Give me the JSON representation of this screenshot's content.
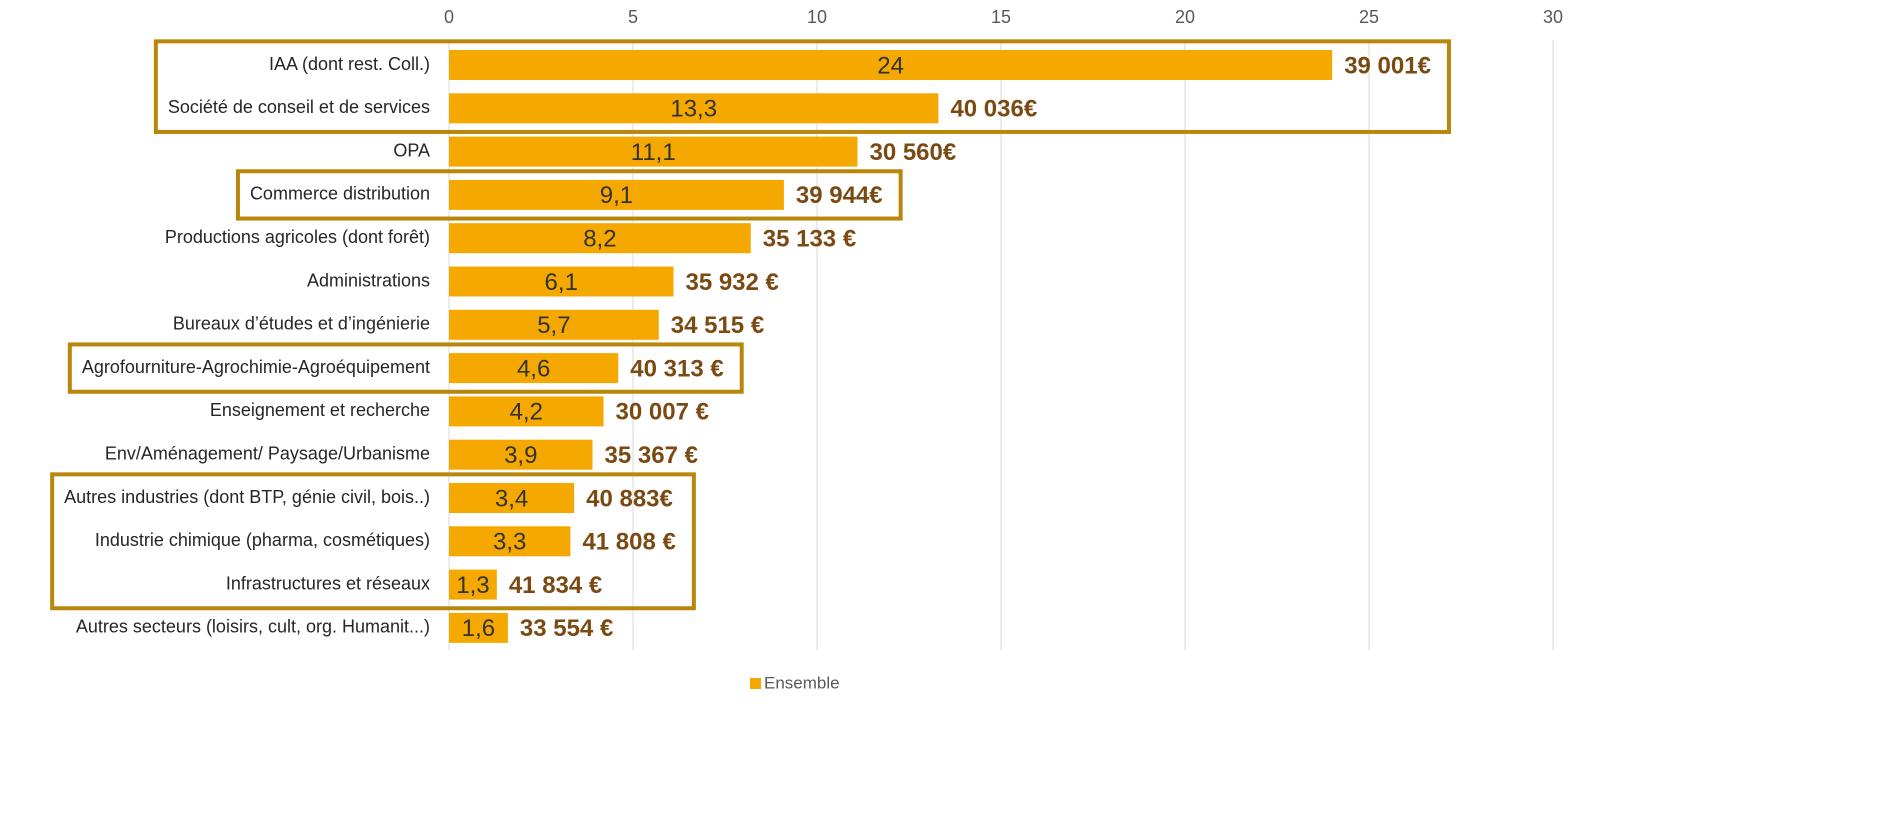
{
  "chart_data": {
    "type": "bar",
    "orientation": "horizontal",
    "categories": [
      "IAA (dont rest. Coll.)",
      "Société de conseil et de services",
      "OPA",
      "Commerce distribution",
      "Productions agricoles (dont forêt)",
      "Administrations",
      "Bureaux d’études et d’ingénierie",
      "Agrofourniture-Agrochimie-Agroéquipement",
      "Enseignement et recherche",
      "Env/Aménagement/ Paysage/Urbanisme",
      "Autres industries (dont BTP, génie civil, bois..)",
      "Industrie chimique (pharma, cosmétiques)",
      "Infrastructures et réseaux",
      "Autres secteurs (loisirs, cult, org. Humanit...)"
    ],
    "series": [
      {
        "name": "Ensemble",
        "color": "#f5a800",
        "values": [
          24,
          13.3,
          11.1,
          9.1,
          8.2,
          6.1,
          5.7,
          4.6,
          4.2,
          3.9,
          3.4,
          3.3,
          1.3,
          1.6
        ],
        "value_labels": [
          "24",
          "13,3",
          "11,1",
          "9,1",
          "8,2",
          "6,1",
          "5,7",
          "4,6",
          "4,2",
          "3,9",
          "3,4",
          "3,3",
          "1,3",
          "1,6"
        ]
      }
    ],
    "annotations": [
      "39 001€",
      "40 036€",
      "30 560€",
      "39 944€",
      "35 133 €",
      "35 932 €",
      "34 515 €",
      "40 313 €",
      "30 007 €",
      "35 367 €",
      "40 883€",
      "41 808 €",
      "41 834 €",
      "33 554 €"
    ],
    "highlight_groups": [
      [
        0,
        1
      ],
      [
        3
      ],
      [
        7
      ],
      [
        10,
        11,
        12
      ]
    ],
    "xlim": [
      0,
      30
    ],
    "xticks": [
      0,
      5,
      10,
      15,
      20,
      25,
      30
    ],
    "grid": true,
    "legend": "bottom"
  }
}
